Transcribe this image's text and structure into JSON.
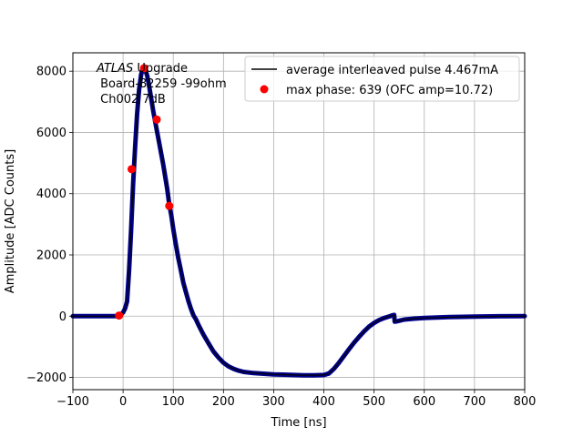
{
  "chart_data": {
    "type": "line",
    "xlabel": "Time [ns]",
    "ylabel": "Amplitude [ADC Counts]",
    "xlim": [
      -100,
      800
    ],
    "ylim": [
      -2400,
      8600
    ],
    "xticks": [
      -100,
      0,
      100,
      200,
      300,
      400,
      500,
      600,
      700,
      800
    ],
    "yticks": [
      -2000,
      0,
      2000,
      4000,
      6000,
      8000
    ],
    "grid": true,
    "legend_position": "upper-right",
    "annotation": {
      "line1_italic": "ATLAS",
      "line1_rest": " Upgrade",
      "line2": " Board-82259 -99ohm",
      "line3": " Ch002 7dB"
    },
    "series": [
      {
        "name": "average interleaved pulse 4.467mA",
        "kind": "line",
        "color": "#000000",
        "marker_color": "#00008b",
        "x": [
          -100,
          -20,
          -12,
          -8,
          -4,
          0,
          4,
          8,
          12,
          16,
          20,
          24,
          28,
          32,
          36,
          40,
          44,
          48,
          52,
          56,
          60,
          64,
          68,
          72,
          76,
          80,
          84,
          88,
          92,
          96,
          100,
          105,
          110,
          115,
          120,
          125,
          130,
          135,
          140,
          145,
          150,
          160,
          170,
          180,
          190,
          200,
          210,
          220,
          230,
          240,
          260,
          280,
          300,
          320,
          340,
          360,
          380,
          400,
          410,
          420,
          430,
          440,
          450,
          460,
          470,
          480,
          490,
          500,
          510,
          520,
          530,
          535,
          540,
          541,
          545,
          550,
          560,
          580,
          600,
          650,
          700,
          750,
          800
        ],
        "y": [
          0,
          0,
          0,
          20,
          60,
          120,
          250,
          480,
          1500,
          2800,
          4300,
          5500,
          6600,
          7400,
          7900,
          8100,
          8050,
          7850,
          7500,
          7100,
          6700,
          6350,
          6000,
          5650,
          5300,
          4950,
          4550,
          4150,
          3650,
          3300,
          2850,
          2350,
          1900,
          1500,
          1100,
          800,
          500,
          250,
          30,
          -100,
          -280,
          -600,
          -880,
          -1150,
          -1350,
          -1520,
          -1640,
          -1720,
          -1780,
          -1820,
          -1860,
          -1880,
          -1900,
          -1910,
          -1920,
          -1930,
          -1930,
          -1920,
          -1870,
          -1720,
          -1520,
          -1300,
          -1080,
          -870,
          -680,
          -500,
          -340,
          -220,
          -130,
          -60,
          -10,
          20,
          40,
          -180,
          -170,
          -150,
          -110,
          -80,
          -60,
          -30,
          -15,
          -5,
          0
        ]
      },
      {
        "name": "max phase: 639 (OFC amp=10.72)",
        "kind": "scatter",
        "color": "#ff0000",
        "x": [
          -8,
          17,
          42,
          67,
          92
        ],
        "y": [
          20,
          4800,
          8100,
          6420,
          3600
        ]
      }
    ]
  }
}
